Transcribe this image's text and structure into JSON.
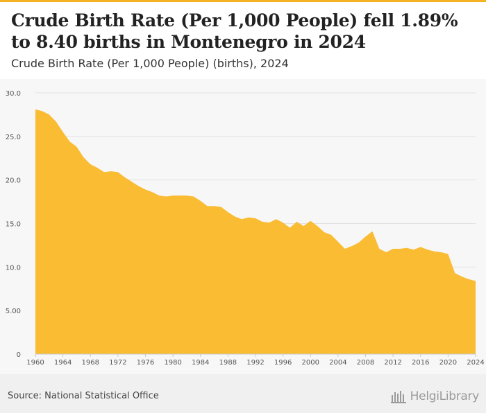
{
  "header": {
    "title": "Crude Birth Rate (Per 1,000 People) fell 1.89% to 8.40 births in Montenegro in 2024",
    "subtitle": "Crude Birth Rate (Per 1,000 People) (births), 2024"
  },
  "footer": {
    "source": "Source: National Statistical Office",
    "brand": "HelgiLibrary"
  },
  "colors": {
    "accent": "#f5b324",
    "area_fill": "#f9bc32",
    "plot_background": "#f7f7f7"
  },
  "chart_data": {
    "type": "area",
    "title": "Crude Birth Rate (Per 1,000 People) fell 1.89% to 8.40 births in Montenegro in 2024",
    "subtitle": "Crude Birth Rate (Per 1,000 People) (births), 2024",
    "xlabel": "",
    "ylabel": "",
    "xlim": [
      1960,
      2024
    ],
    "ylim": [
      0,
      30
    ],
    "grid": "horizontal",
    "legend": "none",
    "x_ticks": [
      1960,
      1964,
      1968,
      1972,
      1976,
      1980,
      1984,
      1988,
      1992,
      1996,
      2000,
      2004,
      2008,
      2012,
      2016,
      2020,
      2024
    ],
    "x_tick_labels": [
      "1960",
      "1964",
      "1968",
      "1972",
      "1976",
      "1980",
      "1984",
      "1988",
      "1992",
      "1996",
      "2000",
      "2004",
      "2008",
      "2012",
      "2016",
      "2020",
      "2024"
    ],
    "y_ticks": [
      0,
      5,
      10,
      15,
      20,
      25,
      30
    ],
    "y_tick_labels": [
      "0",
      "5.00",
      "10.0",
      "15.0",
      "20.0",
      "25.0",
      "30.0"
    ],
    "x": [
      1960,
      1961,
      1962,
      1963,
      1964,
      1965,
      1966,
      1967,
      1968,
      1969,
      1970,
      1971,
      1972,
      1973,
      1974,
      1975,
      1976,
      1977,
      1978,
      1979,
      1980,
      1981,
      1982,
      1983,
      1984,
      1985,
      1986,
      1987,
      1988,
      1989,
      1990,
      1991,
      1992,
      1993,
      1994,
      1995,
      1996,
      1997,
      1998,
      1999,
      2000,
      2001,
      2002,
      2003,
      2004,
      2005,
      2006,
      2007,
      2008,
      2009,
      2010,
      2011,
      2012,
      2013,
      2014,
      2015,
      2016,
      2017,
      2018,
      2019,
      2020,
      2021,
      2022,
      2023,
      2024
    ],
    "values": [
      28.1,
      27.9,
      27.5,
      26.7,
      25.5,
      24.4,
      23.8,
      22.6,
      21.8,
      21.4,
      20.9,
      21.0,
      20.9,
      20.3,
      19.8,
      19.3,
      18.9,
      18.6,
      18.2,
      18.1,
      18.2,
      18.2,
      18.2,
      18.1,
      17.6,
      17.0,
      17.0,
      16.9,
      16.3,
      15.8,
      15.5,
      15.7,
      15.6,
      15.2,
      15.1,
      15.5,
      15.1,
      14.5,
      15.2,
      14.7,
      15.3,
      14.7,
      14.0,
      13.7,
      12.9,
      12.1,
      12.4,
      12.8,
      13.5,
      14.1,
      12.1,
      11.7,
      12.1,
      12.1,
      12.2,
      12.0,
      12.3,
      12.0,
      11.8,
      11.7,
      11.5,
      9.3,
      8.9,
      8.6,
      8.4
    ]
  }
}
